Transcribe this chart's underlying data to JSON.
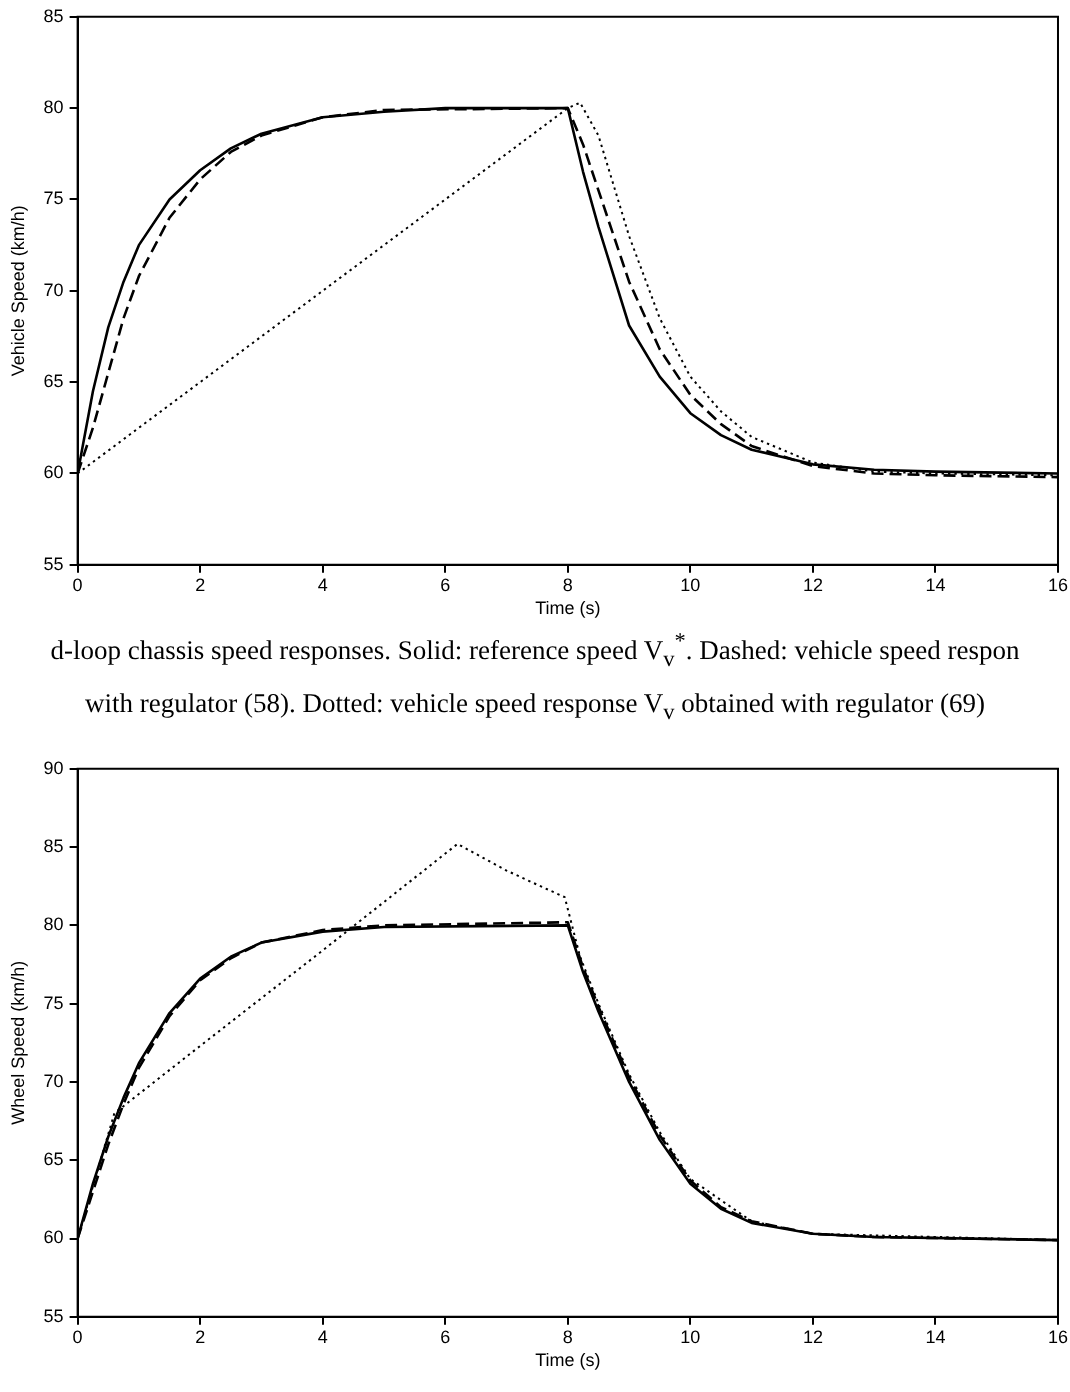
{
  "chart_data": [
    {
      "type": "line",
      "xlabel": "Time (s)",
      "ylabel": "Vehicle Speed (km/h)",
      "xlim": [
        0,
        16
      ],
      "xticks": [
        0,
        2,
        4,
        6,
        8,
        10,
        12,
        14,
        16
      ],
      "ylim": [
        55,
        85
      ],
      "yticks": [
        55,
        60,
        65,
        70,
        75,
        80,
        85
      ],
      "grid": false,
      "legend": false,
      "marker": "none",
      "annotations": [
        "d-loop chassis speed responses. Solid:  reference speed V$_{v}$$^{*}$. Dashed: vehicle speed respon",
        "with regulator (58). Dotted: vehicle speed response V$_{v}$ obtained with regulator (69)"
      ],
      "series": [
        {
          "color": "#000000",
          "line_style": "solid",
          "x": [
            0,
            0.25,
            0.5,
            0.75,
            1,
            1.5,
            2,
            2.5,
            3,
            4,
            5,
            6,
            8,
            8.25,
            8.5,
            9,
            9.5,
            10,
            10.5,
            11,
            12,
            13,
            14,
            16
          ],
          "values": [
            60,
            64.5,
            68,
            70.5,
            72.5,
            75,
            76.6,
            77.8,
            78.6,
            79.5,
            79.8,
            80,
            80,
            76.5,
            73.5,
            68.1,
            65.3,
            63.3,
            62.1,
            61.3,
            60.5,
            60.2,
            60.1,
            60
          ]
        },
        {
          "color": "#000000",
          "line_style": "dashed",
          "x": [
            0,
            0.25,
            0.5,
            0.75,
            1,
            1.5,
            2,
            2.5,
            3,
            4,
            5,
            8,
            8.25,
            8.5,
            9,
            9.5,
            10,
            10.5,
            11,
            12,
            13,
            14,
            16
          ],
          "values": [
            60,
            62.5,
            65.5,
            68.5,
            70.8,
            74,
            76.1,
            77.6,
            78.5,
            79.5,
            79.9,
            80,
            78,
            75.5,
            70.5,
            66.8,
            64.3,
            62.7,
            61.5,
            60.4,
            60,
            59.9,
            59.8
          ]
        },
        {
          "color": "#000000",
          "line_style": "dotted",
          "x": [
            0,
            8,
            8.2,
            8.5,
            9,
            9.5,
            10,
            10.5,
            11,
            12,
            13,
            14,
            16
          ],
          "values": [
            60,
            80,
            80.3,
            78.5,
            73,
            68.5,
            65.3,
            63.4,
            62,
            60.6,
            60.1,
            60,
            59.9
          ]
        }
      ]
    },
    {
      "type": "line",
      "xlabel": "Time (s)",
      "ylabel": "Wheel Speed (km/h)",
      "xlim": [
        0,
        16
      ],
      "xticks": [
        0,
        2,
        4,
        6,
        8,
        10,
        12,
        14,
        16
      ],
      "ylim": [
        55,
        90
      ],
      "yticks": [
        55,
        60,
        65,
        70,
        75,
        80,
        85,
        90
      ],
      "grid": false,
      "legend": false,
      "marker": "none",
      "series": [
        {
          "color": "#000000",
          "line_style": "solid",
          "x": [
            0,
            0.25,
            0.5,
            0.75,
            1,
            1.5,
            2,
            2.5,
            3,
            4,
            5,
            8,
            8.25,
            8.5,
            9,
            9.5,
            10,
            10.5,
            11,
            12,
            13,
            16
          ],
          "values": [
            60,
            63.5,
            66.5,
            69,
            71.2,
            74.4,
            76.6,
            78,
            78.9,
            79.6,
            79.9,
            80,
            77,
            74.5,
            70,
            66.3,
            63.5,
            61.9,
            61,
            60.3,
            60.1,
            59.9
          ]
        },
        {
          "color": "#000000",
          "line_style": "dashed",
          "x": [
            0,
            0.25,
            0.5,
            0.75,
            1,
            1.5,
            2,
            2.5,
            3,
            4,
            5,
            8,
            8.25,
            8.5,
            9,
            9.5,
            10,
            10.5,
            11,
            12,
            13,
            16
          ],
          "values": [
            60,
            63,
            66,
            68.6,
            70.9,
            74.2,
            76.5,
            77.9,
            78.9,
            79.7,
            80,
            80.2,
            77.3,
            74.8,
            70.3,
            66.6,
            63.7,
            62,
            61.1,
            60.3,
            60.1,
            59.9
          ]
        },
        {
          "color": "#000000",
          "line_style": "dotted",
          "x": [
            0,
            0.3,
            0.6,
            2,
            4,
            6.2,
            7,
            7.5,
            7.95,
            8.2,
            8.5,
            9,
            9.5,
            10,
            11,
            12,
            16
          ],
          "values": [
            60,
            64,
            68,
            72.3,
            78.4,
            85.2,
            83.5,
            82.6,
            81.8,
            78,
            75,
            70.5,
            66.8,
            63.8,
            61.1,
            60.3,
            59.9
          ]
        }
      ]
    }
  ]
}
